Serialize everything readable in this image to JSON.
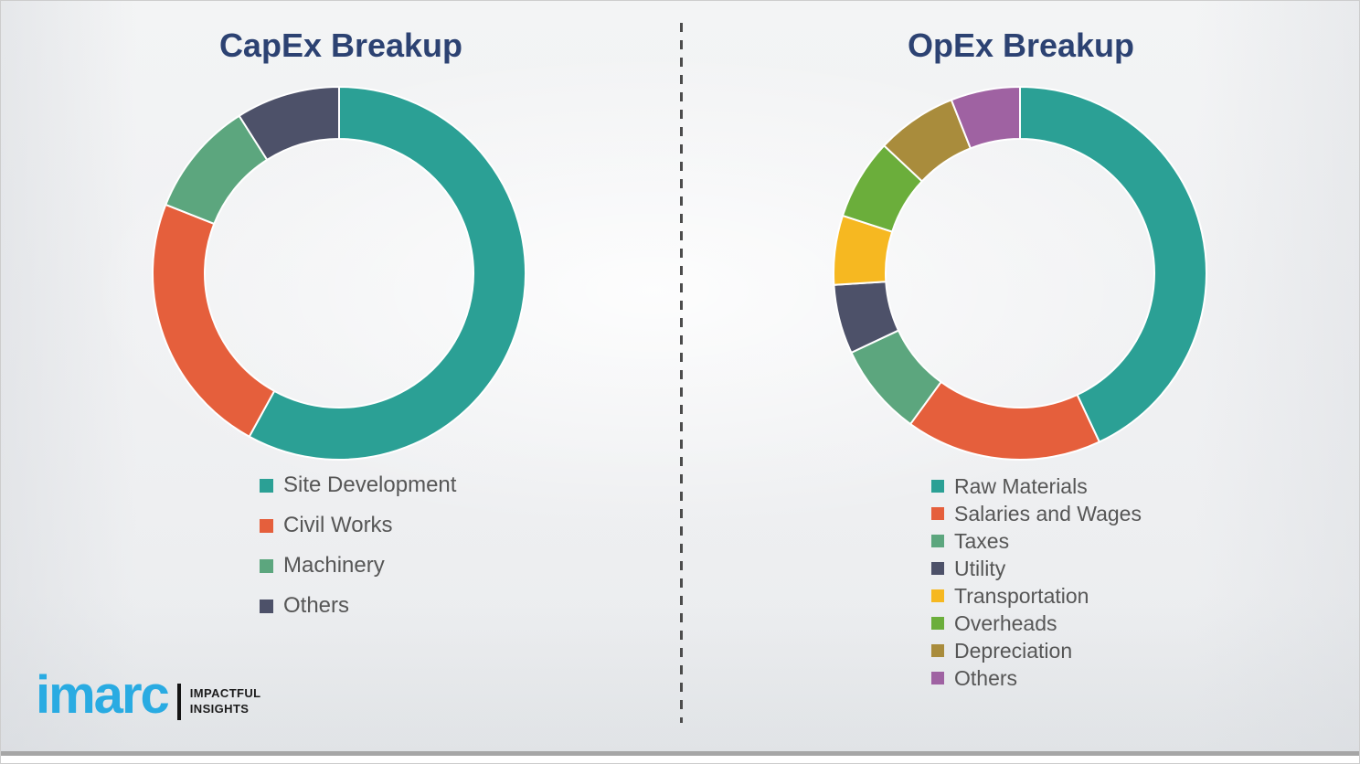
{
  "page": {
    "background_color": "#eff0f2",
    "title_color": "#2c4272",
    "legend_text_color": "#565656",
    "divider_style": "vertical-dashed"
  },
  "logo": {
    "brand": "imarc",
    "brand_color": "#29abe2",
    "tagline": [
      "IMPACTFUL",
      "INSIGHTS"
    ]
  },
  "chart_data": [
    {
      "type": "pie",
      "variant": "donut",
      "title": "CapEx Breakup",
      "legend_position": "bottom-left",
      "unit": "percent-estimated",
      "segments": [
        {
          "label": "Site Development",
          "value": 58,
          "color": "#2ba095"
        },
        {
          "label": "Civil Works",
          "value": 23,
          "color": "#e55f3c"
        },
        {
          "label": "Machinery",
          "value": 10,
          "color": "#5ca67e"
        },
        {
          "label": "Others",
          "value": 9,
          "color": "#4d5169"
        }
      ]
    },
    {
      "type": "pie",
      "variant": "donut",
      "title": "OpEx Breakup",
      "legend_position": "bottom-left",
      "unit": "percent-estimated",
      "segments": [
        {
          "label": "Raw Materials",
          "value": 43,
          "color": "#2ba095"
        },
        {
          "label": "Salaries and Wages",
          "value": 17,
          "color": "#e55f3c"
        },
        {
          "label": "Taxes",
          "value": 8,
          "color": "#5ca67e"
        },
        {
          "label": "Utility",
          "value": 6,
          "color": "#4d5169"
        },
        {
          "label": "Transportation",
          "value": 6,
          "color": "#f6b821"
        },
        {
          "label": "Overheads",
          "value": 7,
          "color": "#6bae3b"
        },
        {
          "label": "Depreciation",
          "value": 7,
          "color": "#a98c3c"
        },
        {
          "label": "Others",
          "value": 6,
          "color": "#9f62a2"
        }
      ]
    }
  ]
}
